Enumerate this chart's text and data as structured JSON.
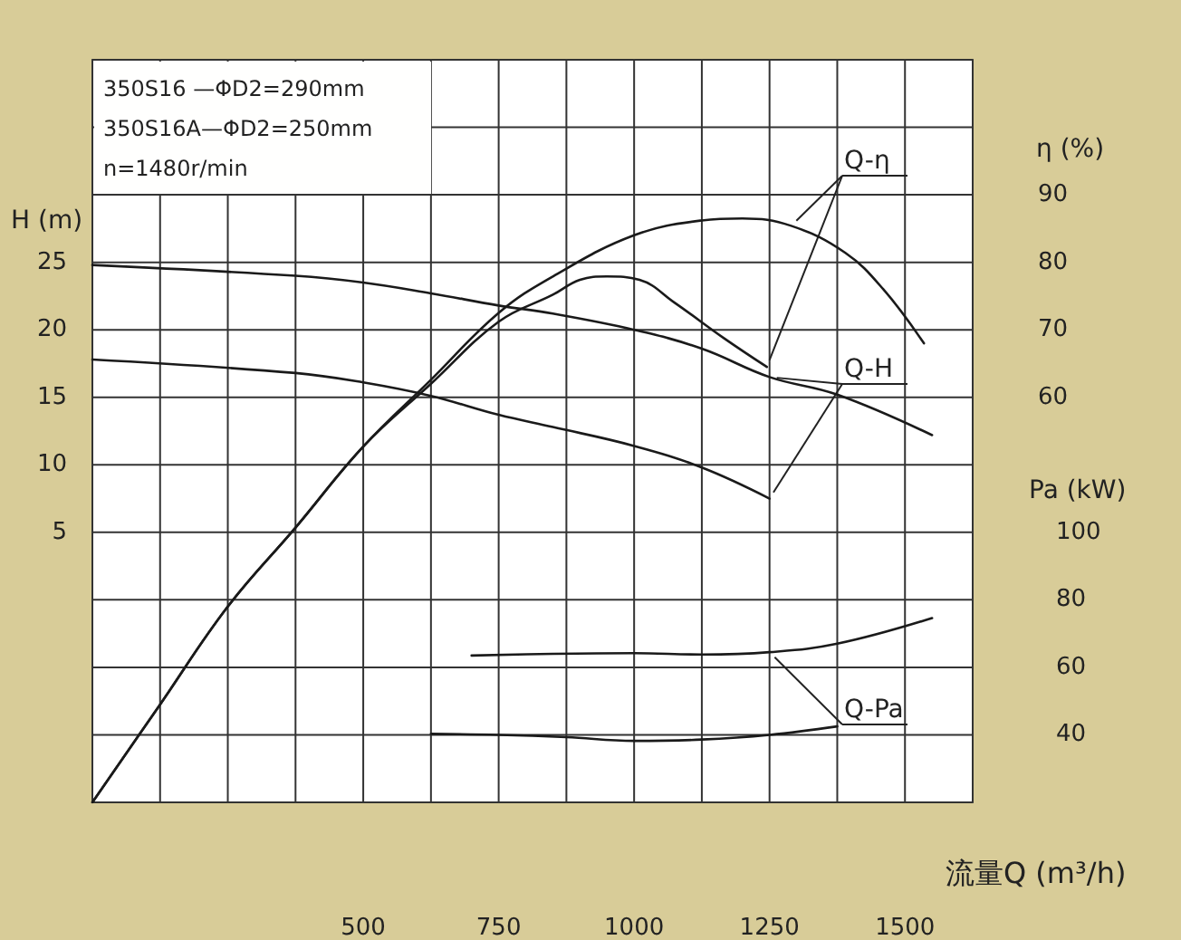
{
  "chart_data": {
    "type": "line",
    "xlabel": "流量Q (m³/h)",
    "ylabel": "H (m)",
    "y2label": "η (%)",
    "y3label": "Pa (kW)",
    "xlim": [
      0,
      1625
    ],
    "xticks": [
      {
        "value": 0,
        "label": null
      },
      {
        "value": 125,
        "label": null
      },
      {
        "value": 250,
        "label": null
      },
      {
        "value": 375,
        "label": null
      },
      500,
      {
        "value": 625,
        "label": null
      },
      750,
      {
        "value": 875,
        "label": null
      },
      1000,
      {
        "value": 1125,
        "label": null
      },
      1250,
      {
        "value": 1375,
        "label": null
      },
      1500,
      {
        "value": 1625,
        "label": null
      }
    ],
    "ylim": [
      -15,
      40
    ],
    "yticks": [
      {
        "value": -15,
        "label": null
      },
      {
        "value": -10,
        "label": null
      },
      {
        "value": -5,
        "label": null
      },
      {
        "value": 0,
        "label": null
      },
      5,
      10,
      15,
      20,
      25,
      {
        "value": 30,
        "label": null
      },
      {
        "value": 35,
        "label": null
      },
      {
        "value": 40,
        "label": null
      }
    ],
    "y2lim": [
      0,
      110
    ],
    "y2ticks": [
      60,
      70,
      80,
      90
    ],
    "y3lim": [
      20,
      240
    ],
    "y3ticks": [
      40,
      60,
      80,
      100
    ],
    "grid": true,
    "marker": "none",
    "line_style": "solid",
    "annotations": [
      "350S16 —ΦD2=290mm",
      "350S16A—ΦD2=250mm",
      "n=1480r/min",
      {
        "text": "Q-H",
        "x": 1250,
        "y": 16.5
      },
      {
        "text": "Q-η",
        "x": 1290,
        "y": 27.7
      },
      {
        "text": "Q-Pa",
        "x": 1375,
        "y": -9.4
      }
    ],
    "series": [
      {
        "color": "#1a1a1a",
        "x": [
          0,
          375,
          500,
          625,
          750,
          850,
          1000,
          1125,
          1250,
          1375,
          1550
        ],
        "values": [
          24.8,
          24.0,
          23.5,
          22.7,
          21.8,
          21.2,
          20.0,
          18.6,
          16.5,
          15.2,
          12.2
        ]
      },
      {
        "color": "#1a1a1a",
        "x": [
          0,
          375,
          500,
          625,
          750,
          850,
          1000,
          1125,
          1250
        ],
        "values": [
          17.8,
          16.8,
          16.1,
          15.1,
          13.7,
          12.8,
          11.4,
          9.8,
          7.5
        ]
      },
      {
        "color": "#1a1a1a",
        "axis": "y2",
        "x": [
          0,
          125,
          250,
          375,
          500,
          625,
          750,
          850,
          1000,
          1125,
          1200,
          1290,
          1390,
          1460,
          1535
        ],
        "values": [
          0,
          14.5,
          29,
          40.7,
          52.7,
          62.6,
          72.5,
          77.9,
          84,
          86.2,
          86.5,
          85.4,
          81.4,
          76,
          68
        ]
      },
      {
        "color": "#1a1a1a",
        "axis": "y2",
        "x": [
          0,
          125,
          250,
          375,
          500,
          625,
          750,
          850,
          900,
          950,
          1010,
          1075,
          1165,
          1245
        ],
        "values": [
          0,
          14.5,
          29,
          40.7,
          52.7,
          62,
          71.2,
          75.2,
          77.4,
          77.9,
          77.4,
          74,
          68.8,
          64.5
        ]
      },
      {
        "color": "#1a1a1a",
        "axis": "y3",
        "x": [
          700,
          850,
          1000,
          1125,
          1250,
          1375,
          1550
        ],
        "values": [
          63.5,
          64,
          64.2,
          63.8,
          64.5,
          67,
          74.6
        ]
      },
      {
        "color": "#1a1a1a",
        "axis": "y3",
        "x": [
          625,
          750,
          875,
          1000,
          1125,
          1250,
          1375
        ],
        "values": [
          40.3,
          40,
          39.3,
          38.2,
          38.6,
          40,
          42.5
        ]
      }
    ]
  }
}
